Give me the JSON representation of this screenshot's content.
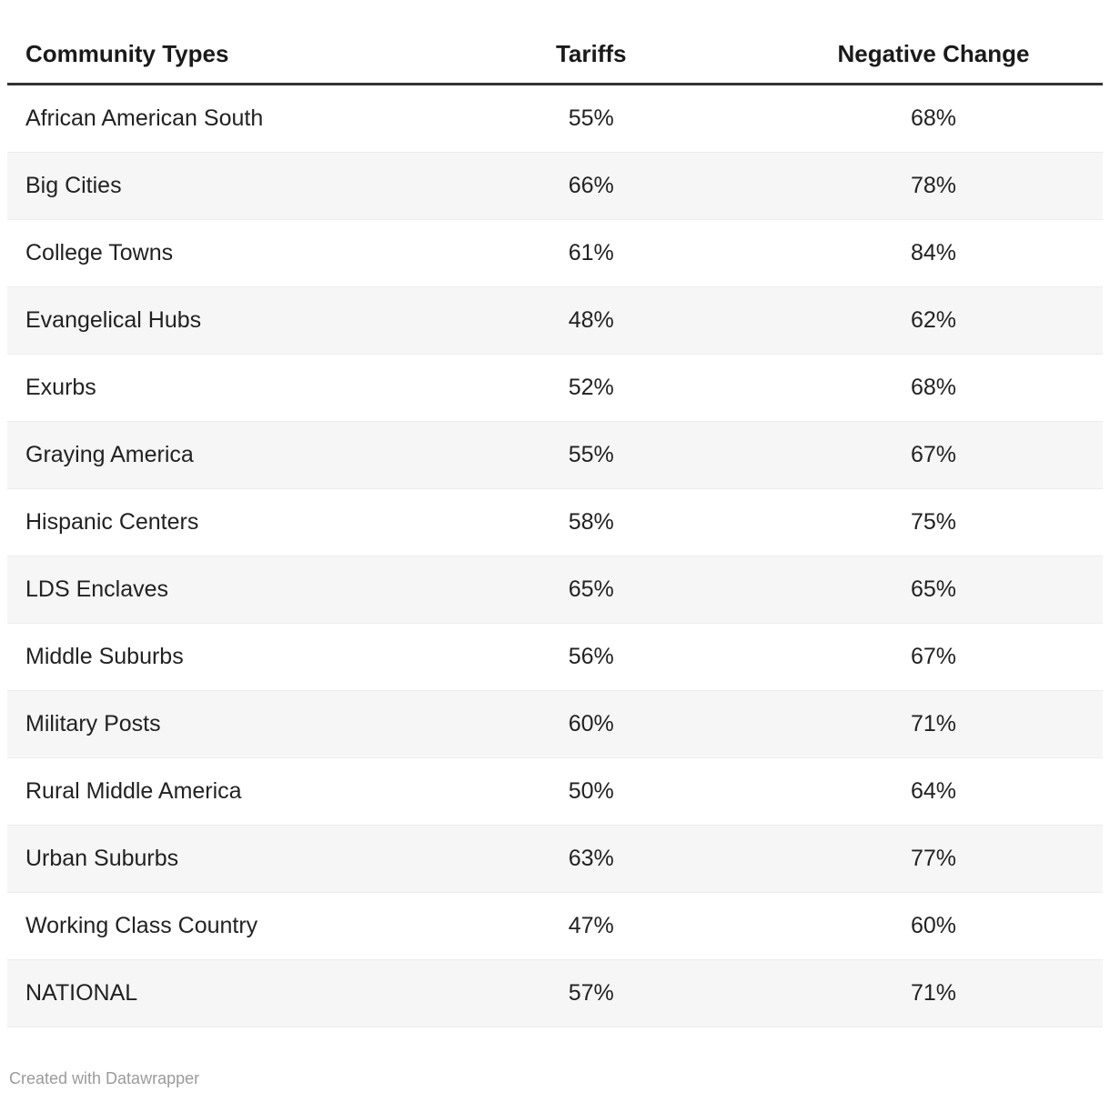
{
  "header": {
    "columns": [
      {
        "label": "Community Types"
      },
      {
        "label": "Tariffs"
      },
      {
        "label": "Negative Change"
      }
    ]
  },
  "rows": [
    {
      "community": "African American South",
      "tariffs": "55%",
      "negative": "68%"
    },
    {
      "community": "Big Cities",
      "tariffs": "66%",
      "negative": "78%"
    },
    {
      "community": "College Towns",
      "tariffs": "61%",
      "negative": "84%"
    },
    {
      "community": "Evangelical Hubs",
      "tariffs": "48%",
      "negative": "62%"
    },
    {
      "community": "Exurbs",
      "tariffs": "52%",
      "negative": "68%"
    },
    {
      "community": "Graying America",
      "tariffs": "55%",
      "negative": "67%"
    },
    {
      "community": "Hispanic Centers",
      "tariffs": "58%",
      "negative": "75%"
    },
    {
      "community": "LDS Enclaves",
      "tariffs": "65%",
      "negative": "65%"
    },
    {
      "community": "Middle Suburbs",
      "tariffs": "56%",
      "negative": "67%"
    },
    {
      "community": "Military Posts",
      "tariffs": "60%",
      "negative": "71%"
    },
    {
      "community": "Rural Middle America",
      "tariffs": "50%",
      "negative": "64%"
    },
    {
      "community": "Urban Suburbs",
      "tariffs": "63%",
      "negative": "77%"
    },
    {
      "community": "Working Class Country",
      "tariffs": "47%",
      "negative": "60%"
    },
    {
      "community": "NATIONAL",
      "tariffs": "57%",
      "negative": "71%"
    }
  ],
  "footer": {
    "credit": "Created with Datawrapper"
  },
  "colors": {
    "stripe": "#f6f6f6",
    "row_border": "#ececec",
    "header_rule": "#333333",
    "body_text": "#222222",
    "header_text": "#1a1a1a",
    "footer_text": "#9b9b9b"
  },
  "chart_data": {
    "type": "table",
    "title": "",
    "columns": [
      "Community Types",
      "Tariffs",
      "Negative Change"
    ],
    "unit": "percent",
    "rows": [
      [
        "African American South",
        55,
        68
      ],
      [
        "Big Cities",
        66,
        78
      ],
      [
        "College Towns",
        61,
        84
      ],
      [
        "Evangelical Hubs",
        48,
        62
      ],
      [
        "Exurbs",
        52,
        68
      ],
      [
        "Graying America",
        55,
        67
      ],
      [
        "Hispanic Centers",
        58,
        75
      ],
      [
        "LDS Enclaves",
        65,
        65
      ],
      [
        "Middle Suburbs",
        56,
        67
      ],
      [
        "Military Posts",
        60,
        71
      ],
      [
        "Rural Middle America",
        50,
        64
      ],
      [
        "Urban Suburbs",
        63,
        77
      ],
      [
        "Working Class Country",
        47,
        60
      ],
      [
        "NATIONAL",
        57,
        71
      ]
    ],
    "layout_hints": {
      "zebra_striping": true,
      "first_column_align": "left",
      "value_columns_align": "center",
      "credit": "Created with Datawrapper"
    }
  }
}
